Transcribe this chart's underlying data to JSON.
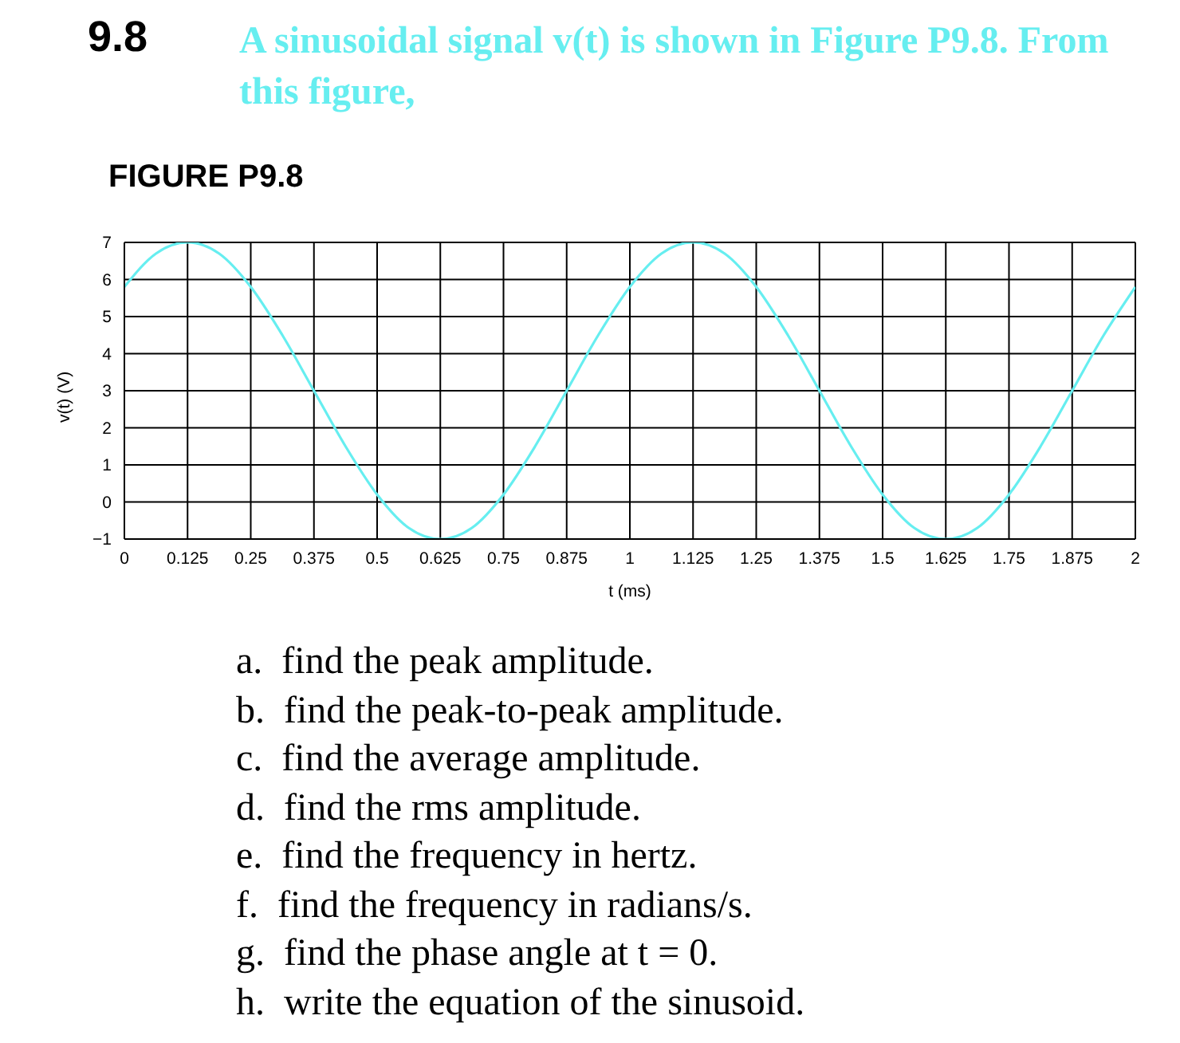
{
  "chart_data": {
    "type": "line",
    "title": "A sinusoidal signal v(t) is shown in Figure P9.8. From this figure,",
    "xlabel": "t (ms)",
    "ylabel": "v(t) (V)",
    "annotations": [
      "9.8",
      "FIGURE P9.8",
      "a.  find the peak amplitude.",
      "b.  find the peak-to-peak amplitude.",
      "c.  find the average amplitude.",
      "d.  find the rms amplitude.",
      "e.  find the frequency in hertz.",
      "f.  find the frequency in radians/s.",
      "g.  find the phase angle at t = 0.",
      "h.  write the equation of the sinusoid."
    ],
    "x": [
      0,
      0.0625,
      0.125,
      0.1875,
      0.25,
      0.3125,
      0.375,
      0.4375,
      0.5,
      0.5625,
      0.625,
      0.6875,
      0.75,
      0.8125,
      0.875,
      0.9375,
      1,
      1.0625,
      1.125,
      1.1875,
      1.25,
      1.3125,
      1.375,
      1.4375,
      1.5,
      1.5625,
      1.625,
      1.6875,
      1.75,
      1.8125,
      1.875,
      1.9375,
      2
    ],
    "series": [
      {
        "color": "#66eef0",
        "values": [
          5.8,
          6.7,
          7,
          6.7,
          5.8,
          4.5,
          3,
          1.5,
          0.2,
          -0.7,
          -1,
          -0.7,
          0.2,
          1.5,
          3,
          4.5,
          5.8,
          6.7,
          7,
          6.7,
          5.8,
          4.5,
          3,
          1.5,
          0.2,
          -0.7,
          -1,
          -0.7,
          0.2,
          1.5,
          3,
          4.5,
          5.8
        ]
      }
    ],
    "xlim": [
      0,
      2
    ],
    "xticks": [
      0,
      0.125,
      0.25,
      0.375,
      0.5,
      0.625,
      0.75,
      0.875,
      1,
      1.125,
      1.25,
      1.375,
      1.5,
      1.625,
      1.75,
      1.875,
      2
    ],
    "ylim": [
      -1,
      7
    ],
    "yticks": [
      {
        "value": -1,
        "label": "−1"
      },
      0,
      1,
      2,
      3,
      4,
      5,
      6,
      7
    ],
    "grid": true,
    "marker": "none",
    "line_style": "solid"
  }
}
